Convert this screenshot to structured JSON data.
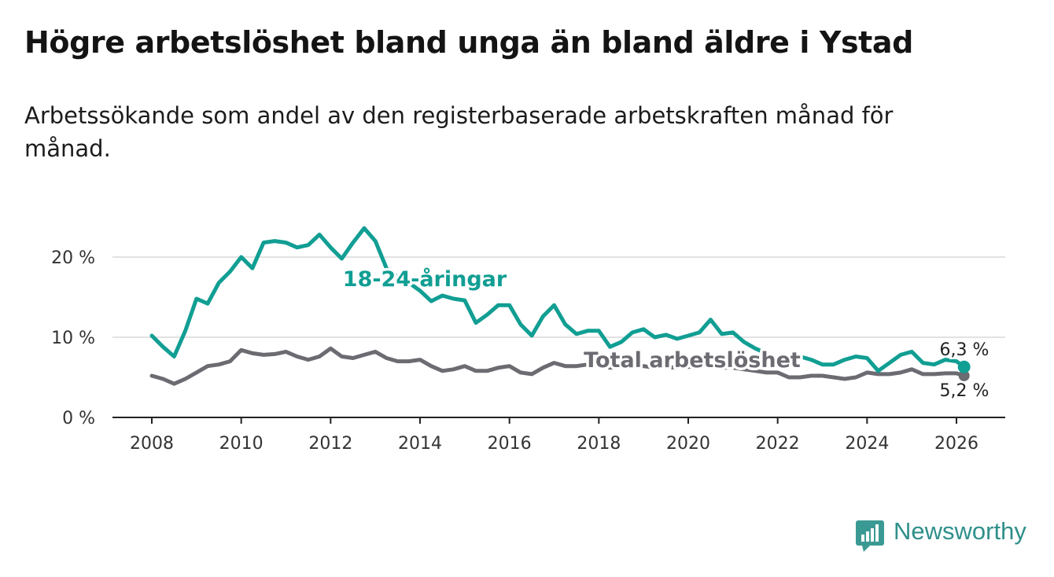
{
  "title": "Högre arbetslöshet bland unga än bland äldre i Ystad",
  "subtitle": "Arbetssökande som andel av den registerbaserade arbetskraften månad för månad.",
  "brand": {
    "name": "Newsworthy",
    "color": "#3a9a93"
  },
  "chart_data": {
    "type": "line",
    "title": "Högre arbetslöshet bland unga än bland äldre i Ystad",
    "xlabel": "",
    "ylabel": "",
    "xlim": [
      2007.2,
      2027.0
    ],
    "ylim": [
      0,
      25
    ],
    "y_ticks": [
      0,
      10,
      20
    ],
    "y_tick_labels": [
      "0 %",
      "10 %",
      "20 %"
    ],
    "x_ticks": [
      2008,
      2010,
      2012,
      2014,
      2016,
      2018,
      2020,
      2022,
      2024,
      2026
    ],
    "x_tick_labels": [
      "2008",
      "2010",
      "2012",
      "2014",
      "2016",
      "2018",
      "2020",
      "2022",
      "2024",
      "2026"
    ],
    "grid": "horizontal",
    "series": [
      {
        "name": "18-24-åringar",
        "color": "#119e93",
        "end_label": "6,3 %",
        "x": [
          2008.0,
          2008.25,
          2008.5,
          2008.75,
          2009.0,
          2009.25,
          2009.5,
          2009.75,
          2010.0,
          2010.25,
          2010.5,
          2010.75,
          2011.0,
          2011.25,
          2011.5,
          2011.75,
          2012.0,
          2012.25,
          2012.5,
          2012.75,
          2013.0,
          2013.25,
          2013.5,
          2013.75,
          2014.0,
          2014.25,
          2014.5,
          2014.75,
          2015.0,
          2015.25,
          2015.5,
          2015.75,
          2016.0,
          2016.25,
          2016.5,
          2016.75,
          2017.0,
          2017.25,
          2017.5,
          2017.75,
          2018.0,
          2018.25,
          2018.5,
          2018.75,
          2019.0,
          2019.25,
          2019.5,
          2019.75,
          2020.0,
          2020.25,
          2020.5,
          2020.75,
          2021.0,
          2021.25,
          2021.5,
          2021.75,
          2022.0,
          2022.25,
          2022.5,
          2022.75,
          2023.0,
          2023.25,
          2023.5,
          2023.75,
          2024.0,
          2024.25,
          2024.5,
          2024.75,
          2025.0,
          2025.25,
          2025.5,
          2025.75,
          2026.0,
          2026.17
        ],
        "values": [
          10.2,
          8.8,
          7.6,
          10.8,
          14.8,
          14.2,
          16.8,
          18.2,
          20.0,
          18.6,
          21.8,
          22.0,
          21.8,
          21.2,
          21.5,
          22.8,
          21.2,
          19.8,
          21.8,
          23.6,
          22.0,
          18.6,
          17.5,
          16.8,
          15.8,
          14.5,
          15.2,
          14.8,
          14.6,
          11.8,
          12.8,
          14.0,
          14.0,
          11.6,
          10.2,
          12.6,
          14.0,
          11.6,
          10.4,
          10.8,
          10.8,
          8.8,
          9.4,
          10.6,
          11.0,
          10.0,
          10.3,
          9.8,
          10.2,
          10.6,
          12.2,
          10.4,
          10.6,
          9.4,
          8.6,
          8.0,
          7.2,
          6.8,
          7.6,
          7.2,
          6.6,
          6.6,
          7.2,
          7.6,
          7.4,
          5.8,
          6.8,
          7.8,
          8.2,
          6.8,
          6.6,
          7.2,
          7.0,
          6.3
        ]
      },
      {
        "name": "Total arbetslöshet",
        "color": "#6b6b72",
        "end_label": "5,2 %",
        "x": [
          2008.0,
          2008.25,
          2008.5,
          2008.75,
          2009.0,
          2009.25,
          2009.5,
          2009.75,
          2010.0,
          2010.25,
          2010.5,
          2010.75,
          2011.0,
          2011.25,
          2011.5,
          2011.75,
          2012.0,
          2012.25,
          2012.5,
          2012.75,
          2013.0,
          2013.25,
          2013.5,
          2013.75,
          2014.0,
          2014.25,
          2014.5,
          2014.75,
          2015.0,
          2015.25,
          2015.5,
          2015.75,
          2016.0,
          2016.25,
          2016.5,
          2016.75,
          2017.0,
          2017.25,
          2017.5,
          2017.75,
          2018.0,
          2018.25,
          2018.5,
          2018.75,
          2019.0,
          2019.25,
          2019.5,
          2019.75,
          2020.0,
          2020.25,
          2020.5,
          2020.75,
          2021.0,
          2021.25,
          2021.5,
          2021.75,
          2022.0,
          2022.25,
          2022.5,
          2022.75,
          2023.0,
          2023.25,
          2023.5,
          2023.75,
          2024.0,
          2024.25,
          2024.5,
          2024.75,
          2025.0,
          2025.25,
          2025.5,
          2025.75,
          2026.0,
          2026.17
        ],
        "values": [
          5.2,
          4.8,
          4.2,
          4.8,
          5.6,
          6.4,
          6.6,
          7.0,
          8.4,
          8.0,
          7.8,
          7.9,
          8.2,
          7.6,
          7.2,
          7.6,
          8.6,
          7.6,
          7.4,
          7.8,
          8.2,
          7.4,
          7.0,
          7.0,
          7.2,
          6.4,
          5.8,
          6.0,
          6.4,
          5.8,
          5.8,
          6.2,
          6.4,
          5.6,
          5.4,
          6.2,
          6.8,
          6.4,
          6.4,
          6.6,
          6.6,
          6.2,
          6.3,
          6.4,
          6.4,
          6.2,
          6.3,
          6.2,
          6.3,
          6.4,
          6.4,
          6.2,
          6.2,
          6.0,
          5.8,
          5.6,
          5.6,
          5.0,
          5.0,
          5.2,
          5.2,
          5.0,
          4.8,
          5.0,
          5.6,
          5.4,
          5.4,
          5.6,
          6.0,
          5.4,
          5.4,
          5.5,
          5.5,
          5.2
        ]
      }
    ]
  }
}
